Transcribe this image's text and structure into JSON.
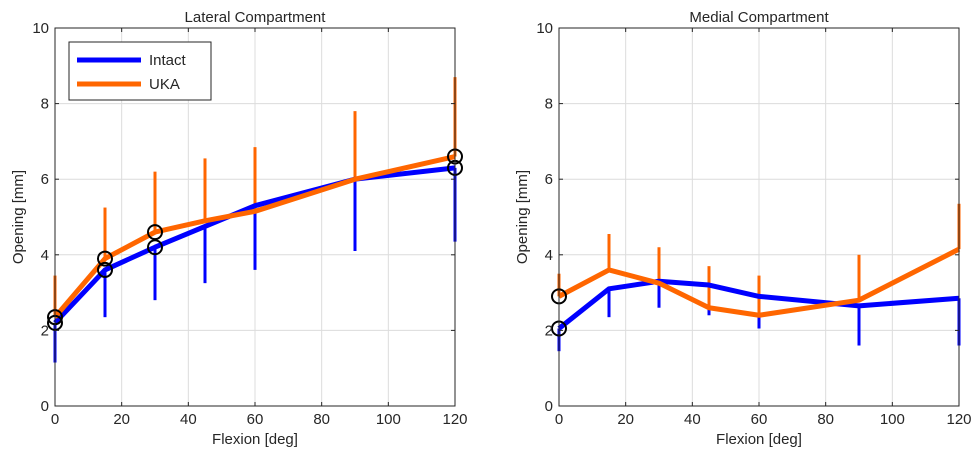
{
  "chart_data": [
    {
      "type": "line",
      "title": "Lateral Compartment",
      "xlabel": "Flexion [deg]",
      "ylabel": "Opening [mm]",
      "xlim": [
        0,
        120
      ],
      "ylim": [
        0,
        10
      ],
      "xticks": [
        0,
        20,
        40,
        60,
        80,
        100,
        120
      ],
      "yticks": [
        0,
        2,
        4,
        6,
        8,
        10
      ],
      "grid": true,
      "legend": "top-left",
      "x": [
        0,
        15,
        30,
        45,
        60,
        90,
        120
      ],
      "series": [
        {
          "name": "Intact",
          "color": "#0000ff",
          "values": [
            2.2,
            3.6,
            4.2,
            4.75,
            5.3,
            6.0,
            6.3
          ],
          "error_low": [
            1.15,
            2.35,
            2.8,
            3.25,
            3.6,
            4.1,
            4.35
          ],
          "marked": [
            0,
            15,
            30,
            120
          ]
        },
        {
          "name": "UKA",
          "color": "#ff6600",
          "values": [
            2.35,
            3.9,
            4.6,
            4.9,
            5.15,
            6.0,
            6.6
          ],
          "error_high": [
            3.45,
            5.25,
            6.2,
            6.55,
            6.85,
            7.8,
            8.7
          ],
          "marked": [
            0,
            15,
            30,
            120
          ]
        }
      ]
    },
    {
      "type": "line",
      "title": "Medial Compartment",
      "xlabel": "Flexion [deg]",
      "ylabel": "Opening [mm]",
      "xlim": [
        0,
        120
      ],
      "ylim": [
        0,
        10
      ],
      "xticks": [
        0,
        20,
        40,
        60,
        80,
        100,
        120
      ],
      "yticks": [
        0,
        2,
        4,
        6,
        8,
        10
      ],
      "grid": true,
      "x": [
        0,
        15,
        30,
        45,
        60,
        90,
        120
      ],
      "series": [
        {
          "name": "Intact",
          "color": "#0000ff",
          "values": [
            2.05,
            3.1,
            3.3,
            3.2,
            2.9,
            2.65,
            2.85
          ],
          "error_low": [
            1.45,
            2.35,
            2.6,
            2.4,
            2.05,
            1.6,
            1.6
          ],
          "marked": [
            0
          ]
        },
        {
          "name": "UKA",
          "color": "#ff6600",
          "values": [
            2.9,
            3.6,
            3.25,
            2.6,
            2.4,
            2.8,
            4.15
          ],
          "error_high": [
            3.5,
            4.55,
            4.2,
            3.7,
            3.45,
            4.0,
            5.35
          ],
          "marked": [
            0
          ]
        }
      ]
    }
  ]
}
